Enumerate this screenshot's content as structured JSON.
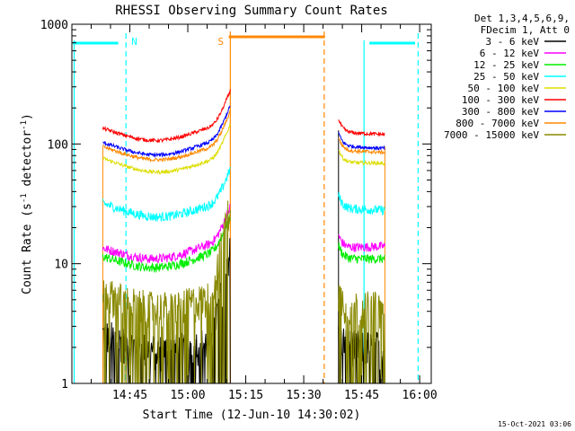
{
  "chart_data": {
    "type": "line",
    "title": "RHESSI Observing Summary Count Rates",
    "xlabel": "Start Time (12-Jun-10 14:30:02)",
    "ylabel_main": "Count Rate (s",
    "ylabel_sup1": "-1",
    "ylabel_mid": " detector",
    "ylabel_sup2": "-1",
    "ylabel_end": ")",
    "yscale": "log",
    "ylim": [
      1,
      1000
    ],
    "xlim_minutes": [
      0,
      93
    ],
    "x_tick_minutes": [
      15,
      30,
      45,
      60,
      75,
      90
    ],
    "x_tick_labels": [
      "14:45",
      "15:00",
      "15:15",
      "15:30",
      "15:45",
      "16:00"
    ],
    "y_tick_values": [
      1,
      10,
      100,
      1000
    ],
    "y_tick_labels": [
      "1",
      "10",
      "100",
      "1000"
    ],
    "legend_header": [
      "Det 1,3,4,5,6,9,",
      "FDecim 1, Att 0"
    ],
    "timestamp": "15-Oct-2021 03:06",
    "data_intervals_minutes": [
      [
        8,
        41
      ],
      [
        69,
        81
      ]
    ],
    "series": [
      {
        "name": "3 - 6 keV",
        "color": "#000000",
        "start": [
          2.6,
          2.2
        ],
        "end": [
          2.1,
          2.0
        ]
      },
      {
        "name": "6 - 12 keV",
        "color": "#ff00ff",
        "start": [
          13.5,
          15.0
        ],
        "end": [
          13.5,
          14.0
        ]
      },
      {
        "name": "12 - 25 keV",
        "color": "#00ee00",
        "start": [
          11.5,
          12.5
        ],
        "end": [
          11.0,
          11.0
        ]
      },
      {
        "name": "25 - 50 keV",
        "color": "#00ffff",
        "start": [
          32,
          31
        ],
        "end": [
          29,
          28
        ]
      },
      {
        "name": "50 - 100 keV",
        "color": "#dddd00",
        "start": [
          76,
          73
        ],
        "end": [
          70,
          69
        ]
      },
      {
        "name": "100 - 300 keV",
        "color": "#ff0000",
        "start": [
          135,
          140
        ],
        "end": [
          125,
          120
        ]
      },
      {
        "name": "300 - 800 keV",
        "color": "#0000ff",
        "start": [
          103,
          105
        ],
        "end": [
          96,
          92
        ]
      },
      {
        "name": "800 - 7000 keV",
        "color": "#ff8800",
        "start": [
          95,
          94
        ],
        "end": [
          88,
          85
        ]
      },
      {
        "name": "7000 - 15000 keV",
        "color": "#888800",
        "start": [
          5.8,
          5.2
        ],
        "end": [
          4.5,
          4.3
        ]
      }
    ],
    "annotations": [
      {
        "label": "N",
        "color": "#00ffff",
        "x_minute": 14
      },
      {
        "label": "S",
        "color": "#ff8800",
        "x_minute": 41
      }
    ]
  },
  "colors": {
    "night": "#00ffff",
    "saa": "#ff8800",
    "axes": "#000000"
  }
}
